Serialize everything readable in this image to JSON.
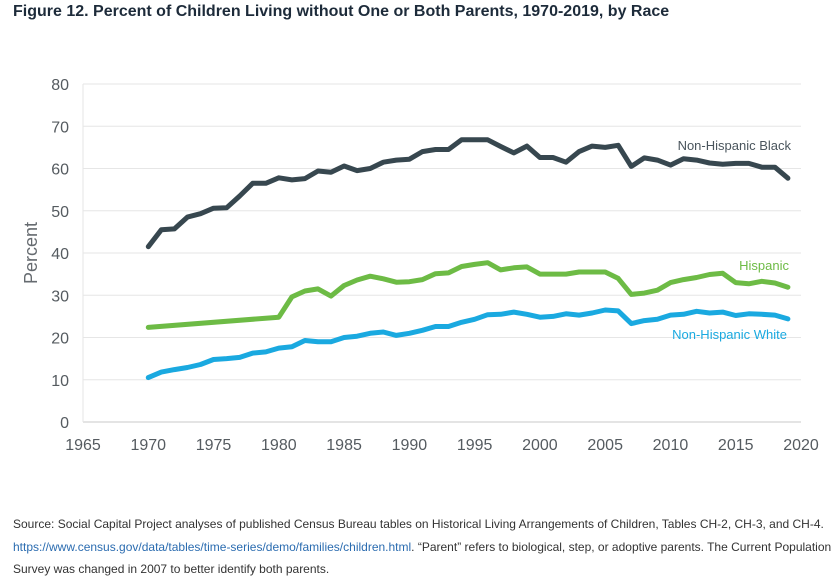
{
  "figure": {
    "title": "Figure 12. Percent of Children Living without One or Both Parents, 1970-2019, by Race"
  },
  "source": {
    "prefix": "Source: Social Capital Project analyses of published Census Bureau tables on Historical Living Arrangements of Children, Tables CH-2, CH-3, and CH-4. ",
    "link": "https://www.census.gov/data/tables/time-series/demo/families/children.html",
    "suffix": ".  “Parent” refers to biological, step, or adoptive parents. The Current Population Survey was changed in 2007 to better identify both parents."
  },
  "chart_data": {
    "type": "line",
    "title": "",
    "xlabel": "",
    "ylabel": "Percent",
    "xlim": [
      1965,
      2020
    ],
    "ylim": [
      0,
      80
    ],
    "xticks": [
      1965,
      1970,
      1975,
      1980,
      1985,
      1990,
      1995,
      2000,
      2005,
      2010,
      2015,
      2020
    ],
    "yticks": [
      0,
      10,
      20,
      30,
      40,
      50,
      60,
      70,
      80
    ],
    "grid": "horizontal",
    "series": [
      {
        "name": "Non-Hispanic Black",
        "color": "#37474f",
        "x": [
          1970,
          1971,
          1972,
          1973,
          1974,
          1975,
          1976,
          1977,
          1978,
          1979,
          1980,
          1981,
          1982,
          1983,
          1984,
          1985,
          1986,
          1987,
          1988,
          1989,
          1990,
          1991,
          1992,
          1993,
          1994,
          1995,
          1996,
          1997,
          1998,
          1999,
          2000,
          2001,
          2002,
          2003,
          2004,
          2005,
          2006,
          2007,
          2008,
          2009,
          2010,
          2011,
          2012,
          2013,
          2014,
          2015,
          2016,
          2017,
          2018,
          2019
        ],
        "y": [
          41.5,
          45.5,
          45.7,
          48.5,
          49.3,
          50.6,
          50.7,
          53.5,
          56.5,
          56.5,
          57.8,
          57.3,
          57.6,
          59.4,
          59.1,
          60.6,
          59.5,
          60.0,
          61.5,
          62.0,
          62.2,
          64.0,
          64.5,
          64.5,
          66.8,
          66.8,
          66.8,
          65.2,
          63.7,
          65.3,
          62.6,
          62.6,
          61.5,
          64.0,
          65.3,
          65.0,
          65.5,
          60.5,
          62.5,
          62.0,
          60.8,
          62.3,
          62.0,
          61.3,
          61.0,
          61.2,
          61.2,
          60.3,
          60.3,
          57.7
        ]
      },
      {
        "name": "Hispanic",
        "color": "#6dbb45",
        "x": [
          1970,
          1980,
          1981,
          1982,
          1983,
          1984,
          1985,
          1986,
          1987,
          1988,
          1989,
          1990,
          1991,
          1992,
          1993,
          1994,
          1995,
          1996,
          1997,
          1998,
          1999,
          2000,
          2001,
          2002,
          2003,
          2004,
          2005,
          2006,
          2007,
          2008,
          2009,
          2010,
          2011,
          2012,
          2013,
          2014,
          2015,
          2016,
          2017,
          2018,
          2019
        ],
        "y": [
          22.4,
          24.8,
          29.6,
          31.0,
          31.5,
          29.8,
          32.3,
          33.6,
          34.5,
          33.9,
          33.1,
          33.2,
          33.7,
          35.1,
          35.3,
          36.8,
          37.3,
          37.7,
          36.0,
          36.5,
          36.7,
          35.0,
          35.0,
          35.0,
          35.5,
          35.5,
          35.5,
          34.0,
          30.2,
          30.5,
          31.2,
          33.0,
          33.7,
          34.2,
          34.9,
          35.2,
          33.0,
          32.7,
          33.3,
          32.9,
          31.9
        ]
      },
      {
        "name": "Non-Hispanic White",
        "color": "#1aa9e0",
        "x": [
          1970,
          1971,
          1972,
          1973,
          1974,
          1975,
          1976,
          1977,
          1978,
          1979,
          1980,
          1981,
          1982,
          1983,
          1984,
          1985,
          1986,
          1987,
          1988,
          1989,
          1990,
          1991,
          1992,
          1993,
          1994,
          1995,
          1996,
          1997,
          1998,
          1999,
          2000,
          2001,
          2002,
          2003,
          2004,
          2005,
          2006,
          2007,
          2008,
          2009,
          2010,
          2011,
          2012,
          2013,
          2014,
          2015,
          2016,
          2017,
          2018,
          2019
        ],
        "y": [
          10.5,
          11.8,
          12.4,
          12.9,
          13.6,
          14.8,
          15.0,
          15.3,
          16.3,
          16.6,
          17.5,
          17.8,
          19.3,
          19.0,
          19.0,
          20.0,
          20.3,
          21.0,
          21.3,
          20.5,
          21.0,
          21.7,
          22.6,
          22.6,
          23.6,
          24.3,
          25.4,
          25.5,
          26.0,
          25.5,
          24.8,
          25.0,
          25.6,
          25.3,
          25.8,
          26.5,
          26.3,
          23.3,
          24.0,
          24.3,
          25.3,
          25.5,
          26.2,
          25.8,
          26.0,
          25.2,
          25.6,
          25.5,
          25.3,
          24.4
        ]
      }
    ]
  }
}
